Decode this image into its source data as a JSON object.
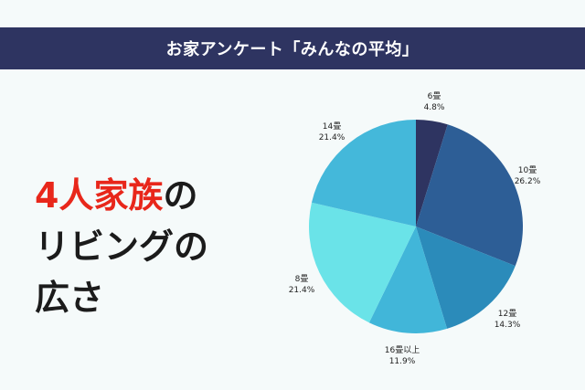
{
  "banner": {
    "title": "お家アンケート「みんなの平均」"
  },
  "headline": {
    "accent": "4人家族",
    "line1_rest": "の",
    "line2": "リビングの",
    "line3": "広さ"
  },
  "chart_data": {
    "type": "pie",
    "title": "",
    "slices": [
      {
        "label": "6畳",
        "pct_label": "4.8%",
        "value": 4.8,
        "color": "#2e3461"
      },
      {
        "label": "10畳",
        "pct_label": "26.2%",
        "value": 26.2,
        "color": "#2d5e96"
      },
      {
        "label": "12畳",
        "pct_label": "14.3%",
        "value": 14.3,
        "color": "#2b8bba"
      },
      {
        "label": "16畳以上",
        "pct_label": "11.9%",
        "value": 11.9,
        "color": "#41b6d9"
      },
      {
        "label": "8畳",
        "pct_label": "21.4%",
        "value": 21.4,
        "color": "#6ae3e8"
      },
      {
        "label": "14畳",
        "pct_label": "21.4%",
        "value": 21.4,
        "color": "#44b8da"
      }
    ]
  }
}
